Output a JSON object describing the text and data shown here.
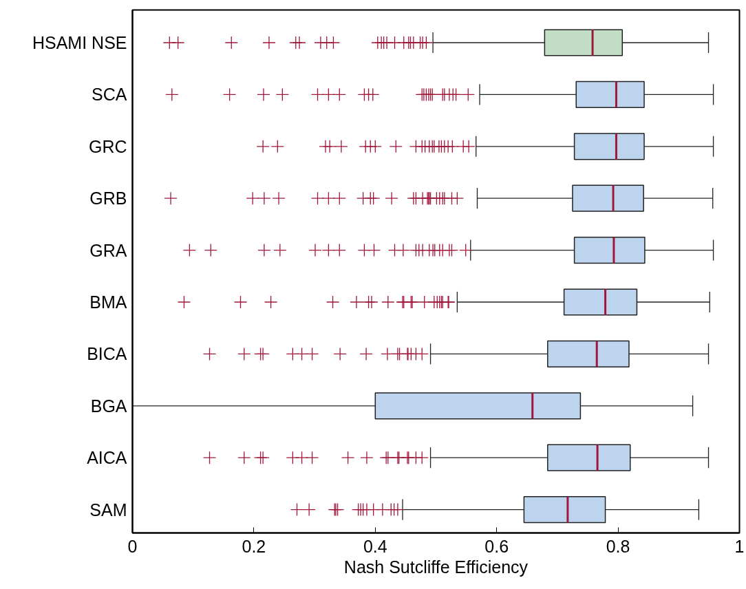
{
  "chart_data": {
    "type": "box",
    "orientation": "horizontal",
    "categories": [
      "HSAMI NSE",
      "SCA",
      "GRC",
      "GRB",
      "GRA",
      "BMA",
      "BICA",
      "BGA",
      "AICA",
      "SAM"
    ],
    "colors": [
      "#c2dec7",
      "#bdd4ee",
      "#bdd4ee",
      "#bdd4ee",
      "#bdd4ee",
      "#bdd4ee",
      "#bdd4ee",
      "#bdd4ee",
      "#bdd4ee",
      "#bdd4ee"
    ],
    "boxes": [
      {
        "low": 0.495,
        "q1": 0.679,
        "median": 0.758,
        "q3": 0.807,
        "high": 0.949,
        "outliers": [
          0.061,
          0.075,
          0.163,
          0.225,
          0.269,
          0.275,
          0.31,
          0.32,
          0.331,
          0.404,
          0.41,
          0.414,
          0.419,
          0.432,
          0.447,
          0.455,
          0.458,
          0.463,
          0.474,
          0.478,
          0.484
        ]
      },
      {
        "low": 0.572,
        "q1": 0.731,
        "median": 0.797,
        "q3": 0.843,
        "high": 0.957,
        "outliers": [
          0.065,
          0.16,
          0.216,
          0.247,
          0.305,
          0.323,
          0.341,
          0.382,
          0.389,
          0.396,
          0.477,
          0.48,
          0.484,
          0.488,
          0.491,
          0.494,
          0.511,
          0.514,
          0.522,
          0.528,
          0.533,
          0.553
        ]
      },
      {
        "low": 0.566,
        "q1": 0.728,
        "median": 0.797,
        "q3": 0.843,
        "high": 0.957,
        "outliers": [
          0.215,
          0.239,
          0.318,
          0.325,
          0.344,
          0.384,
          0.392,
          0.4,
          0.434,
          0.467,
          0.477,
          0.482,
          0.489,
          0.494,
          0.497,
          0.505,
          0.509,
          0.514,
          0.52,
          0.527,
          0.545,
          0.554
        ]
      },
      {
        "low": 0.568,
        "q1": 0.725,
        "median": 0.792,
        "q3": 0.842,
        "high": 0.956,
        "outliers": [
          0.063,
          0.198,
          0.217,
          0.241,
          0.305,
          0.323,
          0.341,
          0.38,
          0.392,
          0.397,
          0.427,
          0.463,
          0.467,
          0.478,
          0.486,
          0.488,
          0.489,
          0.491,
          0.501,
          0.506,
          0.511,
          0.514,
          0.526,
          0.535
        ]
      },
      {
        "low": 0.557,
        "q1": 0.728,
        "median": 0.793,
        "q3": 0.844,
        "high": 0.957,
        "outliers": [
          0.094,
          0.129,
          0.217,
          0.243,
          0.301,
          0.323,
          0.341,
          0.382,
          0.398,
          0.432,
          0.446,
          0.467,
          0.472,
          0.478,
          0.489,
          0.495,
          0.498,
          0.506,
          0.511,
          0.522,
          0.526,
          0.549
        ]
      },
      {
        "low": 0.535,
        "q1": 0.711,
        "median": 0.779,
        "q3": 0.831,
        "high": 0.951,
        "outliers": [
          0.085,
          0.178,
          0.228,
          0.33,
          0.369,
          0.389,
          0.394,
          0.421,
          0.445,
          0.447,
          0.459,
          0.461,
          0.481,
          0.497,
          0.502,
          0.506,
          0.509,
          0.511,
          0.52,
          0.521
        ]
      },
      {
        "low": 0.491,
        "q1": 0.684,
        "median": 0.765,
        "q3": 0.818,
        "high": 0.949,
        "outliers": [
          0.127,
          0.184,
          0.211,
          0.215,
          0.264,
          0.279,
          0.296,
          0.342,
          0.385,
          0.42,
          0.437,
          0.44,
          0.453,
          0.454,
          0.459,
          0.467,
          0.477
        ]
      },
      {
        "low": 0,
        "q1": 0.4,
        "median": 0.659,
        "q3": 0.738,
        "high": 0.923
      },
      {
        "low": 0.491,
        "q1": 0.684,
        "median": 0.766,
        "q3": 0.82,
        "high": 0.949,
        "outliers": [
          0.127,
          0.184,
          0.211,
          0.215,
          0.264,
          0.279,
          0.296,
          0.355,
          0.386,
          0.418,
          0.421,
          0.437,
          0.439,
          0.453,
          0.455,
          0.467,
          0.477
        ]
      },
      {
        "low": 0.445,
        "q1": 0.645,
        "median": 0.717,
        "q3": 0.779,
        "high": 0.933,
        "outliers": [
          0.271,
          0.291,
          0.333,
          0.335,
          0.338,
          0.372,
          0.376,
          0.38,
          0.386,
          0.397,
          0.412,
          0.426,
          0.431,
          0.437
        ]
      }
    ],
    "xlim": [
      0,
      1
    ],
    "xticks": [
      0,
      0.2,
      0.4,
      0.6,
      0.8,
      1
    ],
    "xlabel": "Nash Sutcliffe Efficiency",
    "grid": false
  }
}
